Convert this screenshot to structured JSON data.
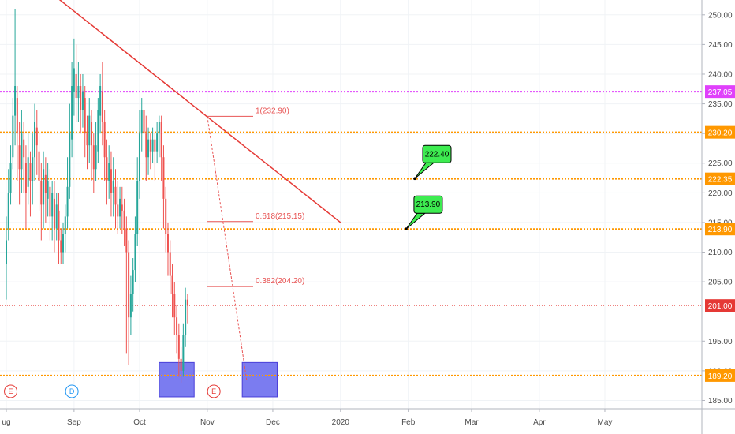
{
  "chart_data": {
    "type": "candlestick",
    "y_axis": {
      "min": 183.6,
      "max": 252.5,
      "ticks": [
        "250.00",
        "245.00",
        "240.00",
        "235.00",
        "230.00",
        "225.00",
        "220.00",
        "215.00",
        "210.00",
        "205.00",
        "195.00",
        "190.00",
        "185.00"
      ]
    },
    "x_axis": {
      "labels": [
        {
          "text": "ug",
          "day": 0
        },
        {
          "text": "Sep",
          "day": 31
        },
        {
          "text": "Oct",
          "day": 61
        },
        {
          "text": "Nov",
          "day": 92
        },
        {
          "text": "Dec",
          "day": 122
        },
        {
          "text": "2020",
          "day": 153
        },
        {
          "text": "Feb",
          "day": 184
        },
        {
          "text": "Mar",
          "day": 213
        },
        {
          "text": "Apr",
          "day": 244
        },
        {
          "text": "May",
          "day": 274
        }
      ]
    },
    "horizontal_levels": [
      {
        "label": "237.05",
        "value": 237.05,
        "color": "#e040fb",
        "badge_color": "#e040fb"
      },
      {
        "label": "230.20",
        "value": 230.2,
        "color": "#ff9800",
        "badge_color": "#ff9800"
      },
      {
        "label": "222.35",
        "value": 222.35,
        "color": "#ff9800",
        "badge_color": "#ff9800"
      },
      {
        "label": "213.90",
        "value": 213.9,
        "color": "#ff9800",
        "badge_color": "#ff9800"
      },
      {
        "label": "189.20",
        "value": 189.2,
        "color": "#ff9800",
        "badge_color": "#ff9800"
      }
    ],
    "last_price": {
      "label": "201.00",
      "value": 201.0,
      "color": "#e53935"
    },
    "trendline": {
      "start": {
        "day": 16,
        "value": 255.0
      },
      "end": {
        "day": 153,
        "value": 215.0
      },
      "color": "#e53935"
    },
    "fibonacci": [
      {
        "label": "1(232.90)",
        "value": 232.9
      },
      {
        "label": "0.618(215.15)",
        "value": 215.15
      },
      {
        "label": "0.382(204.20)",
        "value": 204.2
      }
    ],
    "callouts": [
      {
        "label": "222.40",
        "value": 222.4,
        "anchor_day": 187
      },
      {
        "label": "213.90",
        "value": 213.9,
        "anchor_day": 183
      }
    ],
    "event_markers": [
      {
        "letter": "E",
        "day": 2,
        "color": "#e53935"
      },
      {
        "letter": "D",
        "day": 30,
        "color": "#2196f3"
      },
      {
        "letter": "E",
        "day": 95,
        "color": "#e53935"
      }
    ],
    "highlight_boxes": [
      {
        "day_start": 70,
        "day_end": 86,
        "low": 185.6,
        "high": 191.4
      },
      {
        "day_start": 108,
        "day_end": 124,
        "low": 185.6,
        "high": 191.4
      }
    ],
    "candles": [
      [
        0,
        208,
        212,
        202,
        216
      ],
      [
        1,
        214,
        220,
        212,
        224
      ],
      [
        2,
        220,
        225,
        218,
        228
      ],
      [
        3,
        226,
        233,
        224,
        236
      ],
      [
        4,
        233,
        238,
        228,
        251
      ],
      [
        5,
        236,
        230,
        222,
        238
      ],
      [
        6,
        228,
        224,
        218,
        232
      ],
      [
        7,
        224,
        230,
        220,
        234
      ],
      [
        8,
        229,
        226,
        220,
        232
      ],
      [
        9,
        225,
        220,
        214,
        228
      ],
      [
        10,
        221,
        226,
        218,
        230
      ],
      [
        11,
        225,
        222,
        216,
        227
      ],
      [
        12,
        222,
        226,
        218,
        230
      ],
      [
        13,
        226,
        232,
        222,
        235
      ],
      [
        14,
        231,
        228,
        223,
        234
      ],
      [
        15,
        227,
        222,
        217,
        230
      ],
      [
        16,
        222,
        218,
        212,
        225
      ],
      [
        17,
        218,
        224,
        214,
        227
      ],
      [
        18,
        223,
        220,
        215,
        226
      ],
      [
        19,
        219,
        222,
        216,
        225
      ],
      [
        20,
        221,
        216,
        212,
        224
      ],
      [
        21,
        216,
        220,
        212,
        222
      ],
      [
        22,
        219,
        214,
        210,
        222
      ],
      [
        23,
        214,
        218,
        212,
        220
      ],
      [
        24,
        217,
        212,
        208,
        220
      ],
      [
        25,
        212,
        210,
        208,
        214
      ],
      [
        26,
        210,
        213,
        208,
        215
      ],
      [
        27,
        213,
        216,
        210,
        218
      ],
      [
        28,
        216,
        221,
        214,
        226
      ],
      [
        29,
        221,
        230,
        219,
        235
      ],
      [
        30,
        229,
        238,
        226,
        242
      ],
      [
        31,
        237,
        241,
        233,
        246
      ],
      [
        32,
        240,
        236,
        232,
        245
      ],
      [
        33,
        236,
        238,
        232,
        242
      ],
      [
        34,
        238,
        234,
        230,
        240
      ],
      [
        35,
        234,
        237,
        231,
        240
      ],
      [
        36,
        236,
        230,
        226,
        238
      ],
      [
        37,
        230,
        228,
        224,
        233
      ],
      [
        38,
        228,
        233,
        225,
        236
      ],
      [
        39,
        232,
        228,
        222,
        234
      ],
      [
        40,
        228,
        224,
        220,
        230
      ],
      [
        41,
        224,
        228,
        222,
        232
      ],
      [
        42,
        227,
        234,
        225,
        236
      ],
      [
        43,
        233,
        238,
        230,
        240
      ],
      [
        44,
        237,
        232,
        228,
        242
      ],
      [
        45,
        232,
        226,
        222,
        234
      ],
      [
        46,
        226,
        222,
        218,
        229
      ],
      [
        47,
        222,
        225,
        219,
        228
      ],
      [
        48,
        224,
        220,
        216,
        227
      ],
      [
        49,
        220,
        222,
        216,
        226
      ],
      [
        50,
        221,
        218,
        214,
        224
      ],
      [
        51,
        218,
        216,
        213,
        222
      ],
      [
        52,
        216,
        219,
        214,
        221
      ],
      [
        53,
        218,
        217,
        213,
        221
      ],
      [
        54,
        217,
        214,
        211,
        219
      ],
      [
        55,
        214,
        210,
        193,
        216
      ],
      [
        56,
        210,
        199,
        191,
        212
      ],
      [
        57,
        199,
        203,
        196,
        206
      ],
      [
        58,
        203,
        207,
        200,
        209
      ],
      [
        59,
        207,
        213,
        205,
        216
      ],
      [
        60,
        213,
        222,
        211,
        226
      ],
      [
        61,
        222,
        230,
        219,
        234
      ],
      [
        62,
        230,
        234,
        227,
        236
      ],
      [
        63,
        234,
        230,
        225,
        235
      ],
      [
        64,
        230,
        226,
        222,
        233
      ],
      [
        65,
        226,
        229,
        223,
        231
      ],
      [
        66,
        229,
        227,
        224,
        230
      ],
      [
        67,
        227,
        229,
        225,
        231
      ],
      [
        68,
        229,
        227,
        222,
        230
      ],
      [
        69,
        227,
        230,
        225,
        232
      ],
      [
        70,
        230,
        232,
        226,
        233
      ],
      [
        71,
        232,
        226,
        222,
        233
      ],
      [
        72,
        226,
        219,
        214,
        228
      ],
      [
        73,
        219,
        213,
        210,
        221
      ],
      [
        74,
        213,
        210,
        206,
        215
      ],
      [
        75,
        210,
        206,
        203,
        212
      ],
      [
        76,
        206,
        203,
        199,
        208
      ],
      [
        77,
        203,
        199,
        196,
        205
      ],
      [
        78,
        199,
        196,
        193,
        201
      ],
      [
        79,
        196,
        192,
        189,
        198
      ],
      [
        80,
        192,
        190,
        188,
        194
      ],
      [
        81,
        190,
        196,
        189,
        198
      ],
      [
        82,
        196,
        202,
        194,
        204
      ],
      [
        83,
        202,
        201,
        198,
        203
      ]
    ]
  }
}
